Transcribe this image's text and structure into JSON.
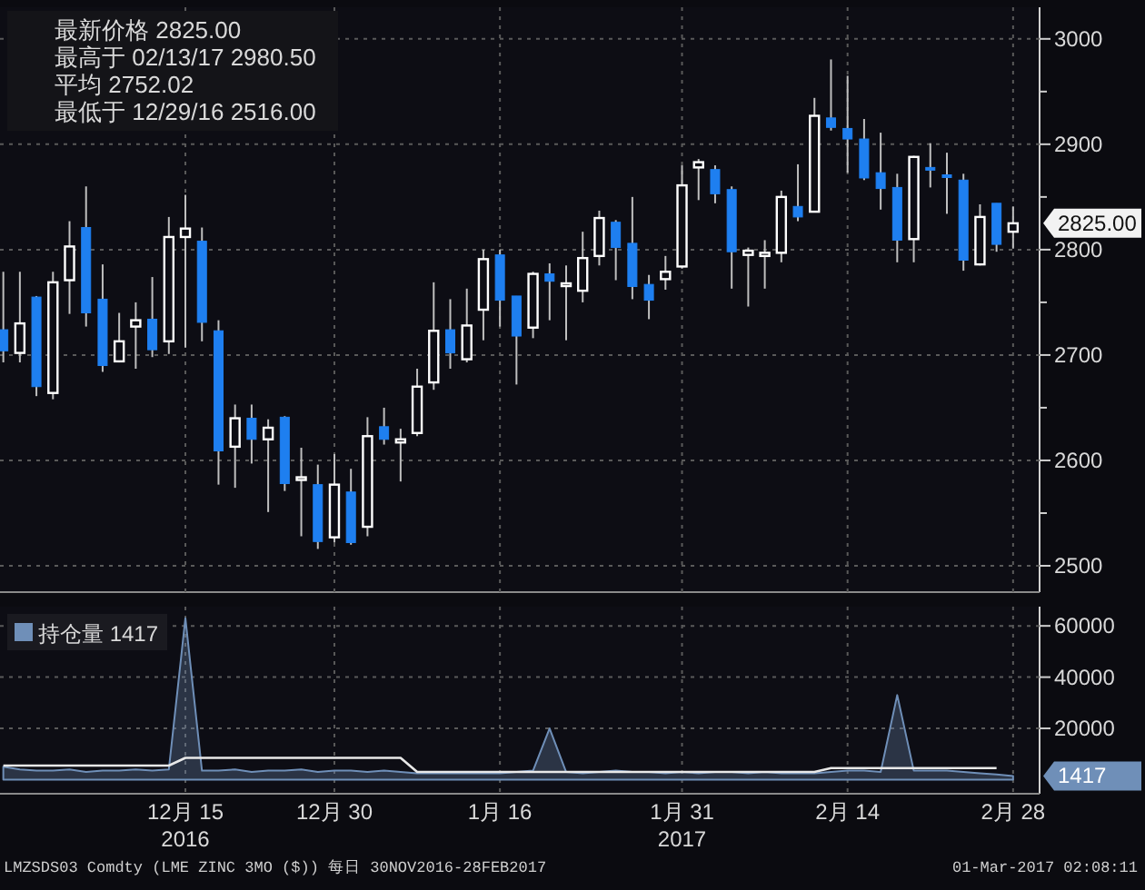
{
  "chart_data": [
    {
      "type": "candlestick",
      "categories": [
        null,
        null,
        null,
        null,
        null,
        null,
        null,
        null,
        null,
        null,
        null,
        null,
        null,
        null,
        null,
        null,
        null,
        null,
        null,
        null,
        null,
        null,
        null,
        null,
        null,
        null,
        null,
        null,
        null,
        null,
        null,
        null,
        null,
        null,
        null,
        null,
        null,
        null,
        null,
        null,
        null,
        null,
        null,
        null,
        null,
        null,
        null,
        null,
        null,
        null,
        null,
        null,
        null,
        null,
        null,
        null,
        null,
        null,
        null,
        null,
        null,
        null
      ],
      "ohlc": [
        [
          2724,
          2779,
          2693,
          2704
        ],
        [
          2702,
          2779,
          2693,
          2730
        ],
        [
          2755,
          2756,
          2661,
          2670
        ],
        [
          2664,
          2779,
          2658,
          2769
        ],
        [
          2771,
          2827,
          2739,
          2803
        ],
        [
          2821,
          2860,
          2727,
          2740
        ],
        [
          2753,
          2786,
          2684,
          2690
        ],
        [
          2694,
          2740,
          2693,
          2713
        ],
        [
          2727,
          2750,
          2687,
          2733
        ],
        [
          2734,
          2774,
          2698,
          2705
        ],
        [
          2713,
          2831,
          2701,
          2812
        ],
        [
          2812,
          2852,
          2707,
          2820
        ],
        [
          2808,
          2821,
          2713,
          2731
        ],
        [
          2723,
          2733,
          2577,
          2609
        ],
        [
          2613,
          2653,
          2574,
          2640
        ],
        [
          2640,
          2653,
          2597,
          2620
        ],
        [
          2620,
          2639,
          2551,
          2631
        ],
        [
          2641,
          2642,
          2571,
          2578
        ],
        [
          2583,
          2612,
          2528,
          2584
        ],
        [
          2577,
          2596,
          2516,
          2523
        ],
        [
          2527,
          2606,
          2522,
          2577
        ],
        [
          2570,
          2592,
          2520,
          2522
        ],
        [
          2537,
          2641,
          2528,
          2623
        ],
        [
          2632,
          2650,
          2615,
          2620
        ],
        [
          2617,
          2630,
          2580,
          2620
        ],
        [
          2626,
          2687,
          2623,
          2670
        ],
        [
          2674,
          2769,
          2667,
          2723
        ],
        [
          2724,
          2753,
          2687,
          2702
        ],
        [
          2696,
          2763,
          2693,
          2728
        ],
        [
          2743,
          2800,
          2714,
          2791
        ],
        [
          2795,
          2800,
          2727,
          2752
        ],
        [
          2756,
          2756,
          2672,
          2718
        ],
        [
          2726,
          2779,
          2716,
          2777
        ],
        [
          2777,
          2787,
          2733,
          2770
        ],
        [
          2767,
          2785,
          2714,
          2768
        ],
        [
          2761,
          2817,
          2750,
          2792
        ],
        [
          2794,
          2837,
          2785,
          2830
        ],
        [
          2826,
          2828,
          2771,
          2802
        ],
        [
          2806,
          2850,
          2753,
          2765
        ],
        [
          2767,
          2776,
          2734,
          2752
        ],
        [
          2772,
          2794,
          2762,
          2779
        ],
        [
          2784,
          2880,
          2782,
          2861
        ],
        [
          2878,
          2886,
          2847,
          2883
        ],
        [
          2876,
          2880,
          2844,
          2853
        ],
        [
          2857,
          2860,
          2763,
          2798
        ],
        [
          2795,
          2802,
          2746,
          2799
        ],
        [
          2794,
          2809,
          2763,
          2797
        ],
        [
          2797,
          2856,
          2788,
          2850
        ],
        [
          2841,
          2881,
          2827,
          2831
        ],
        [
          2836,
          2944,
          2836,
          2927
        ],
        [
          2925,
          2980.5,
          2913,
          2916
        ],
        [
          2915,
          2965,
          2873,
          2905
        ],
        [
          2905,
          2924,
          2866,
          2868
        ],
        [
          2873,
          2911,
          2838,
          2858
        ],
        [
          2859,
          2872,
          2788,
          2809
        ],
        [
          2810,
          2889,
          2788,
          2888
        ],
        [
          2878,
          2901,
          2859,
          2877
        ],
        [
          2871,
          2892,
          2834,
          2869
        ],
        [
          2866,
          2872,
          2780,
          2790
        ],
        [
          2786,
          2843,
          2785,
          2831
        ],
        [
          2844,
          2844,
          2798,
          2805
        ],
        [
          2817,
          2841,
          2801,
          2825
        ]
      ],
      "colors": [
        "#1e7ff0",
        "#ffffff",
        "#1e7ff0",
        "#ffffff",
        "#ffffff",
        "#1e7ff0",
        "#1e7ff0",
        "#ffffff",
        "#ffffff",
        "#1e7ff0",
        "#ffffff",
        "#ffffff",
        "#1e7ff0",
        "#1e7ff0",
        "#ffffff",
        "#1e7ff0",
        "#ffffff",
        "#1e7ff0",
        "#ffffff",
        "#1e7ff0",
        "#ffffff",
        "#1e7ff0",
        "#ffffff",
        "#1e7ff0",
        "#ffffff",
        "#ffffff",
        "#ffffff",
        "#1e7ff0",
        "#ffffff",
        "#ffffff",
        "#1e7ff0",
        "#1e7ff0",
        "#ffffff",
        "#1e7ff0",
        "#ffffff",
        "#ffffff",
        "#ffffff",
        "#1e7ff0",
        "#1e7ff0",
        "#1e7ff0",
        "#ffffff",
        "#ffffff",
        "#ffffff",
        "#1e7ff0",
        "#1e7ff0",
        "#ffffff",
        "#ffffff",
        "#ffffff",
        "#1e7ff0",
        "#ffffff",
        "#1e7ff0",
        "#1e7ff0",
        "#1e7ff0",
        "#1e7ff0",
        "#1e7ff0",
        "#ffffff",
        "#1e7ff0",
        "#1e7ff0",
        "#1e7ff0",
        "#ffffff",
        "#1e7ff0",
        "#ffffff"
      ],
      "ylim": [
        2475,
        3030
      ],
      "yticks": [
        2500,
        {
          "value": 2550,
          "label": null
        },
        2600,
        {
          "value": 2650,
          "label": null
        },
        2700,
        {
          "value": 2750,
          "label": null
        },
        2800,
        {
          "value": 2850,
          "label": null
        },
        2900,
        {
          "value": 2950,
          "label": null
        },
        3000
      ],
      "grid": true,
      "tick_labels": "y",
      "annotations": [
        "最新价格 2825.00",
        "最高于 02/13/17 2980.50",
        "平均 2752.02",
        "最低于 12/29/16 2516.00",
        "2825.00"
      ]
    },
    {
      "type": "area",
      "categories": [
        null,
        null,
        null,
        null,
        null,
        null,
        null,
        null,
        null,
        null,
        null,
        "12月 15\n2016",
        null,
        null,
        null,
        null,
        null,
        null,
        null,
        null,
        "12月 30",
        null,
        null,
        null,
        null,
        null,
        null,
        null,
        null,
        null,
        "1月 16",
        null,
        null,
        null,
        null,
        null,
        null,
        null,
        null,
        null,
        null,
        "1月 31\n2017",
        null,
        null,
        null,
        null,
        null,
        null,
        null,
        null,
        null,
        "2月 14",
        null,
        null,
        null,
        null,
        null,
        null,
        null,
        null,
        null,
        "2月 28"
      ],
      "series": [
        {
          "name": "持仓量 1417",
          "color": "#6f8fb8",
          "values": [
            5000,
            4000,
            3500,
            3500,
            4000,
            3000,
            3500,
            3500,
            4000,
            3500,
            4000,
            63000,
            3500,
            3500,
            4000,
            3000,
            3500,
            3500,
            4000,
            3000,
            3500,
            3500,
            3000,
            3500,
            3000,
            2500,
            2500,
            2500,
            2500,
            2500,
            2500,
            3000,
            3500,
            20000,
            3000,
            2500,
            3000,
            3500,
            3000,
            3000,
            2500,
            3000,
            2500,
            3000,
            3000,
            2500,
            3000,
            2500,
            2500,
            2500,
            3000,
            3500,
            3500,
            3000,
            33000,
            3500,
            3500,
            3500,
            3000,
            2500,
            2000,
            1417
          ]
        },
        {
          "type": "line",
          "color": "#e8e8e8",
          "values": [
            5500,
            5500,
            5500,
            5500,
            5500,
            5500,
            5500,
            5500,
            5500,
            5500,
            5500,
            8500,
            8500,
            8500,
            8500,
            8500,
            8500,
            8500,
            8500,
            8500,
            8500,
            8500,
            8500,
            8500,
            8500,
            3000,
            3000,
            3000,
            3000,
            3000,
            3000,
            3000,
            3000,
            3000,
            3000,
            3000,
            3000,
            3000,
            3000,
            3000,
            3000,
            3000,
            3000,
            3000,
            3000,
            3000,
            3000,
            3000,
            3000,
            3000,
            4500,
            4500,
            4500,
            4500,
            4500,
            4500,
            4500,
            4500,
            4500,
            4500,
            4500,
            null
          ]
        }
      ],
      "ylim": [
        -5500,
        67500
      ],
      "yticks": [
        20000,
        40000,
        60000
      ],
      "grid": true,
      "legend": "top left",
      "annotations": [
        "1417",
        "LMZSDS03 Comdty (LME ZINC 3MO ($)) 每日 30NOV2016-28FEB2017",
        "01-Mar-2017 02:08:11"
      ]
    }
  ]
}
